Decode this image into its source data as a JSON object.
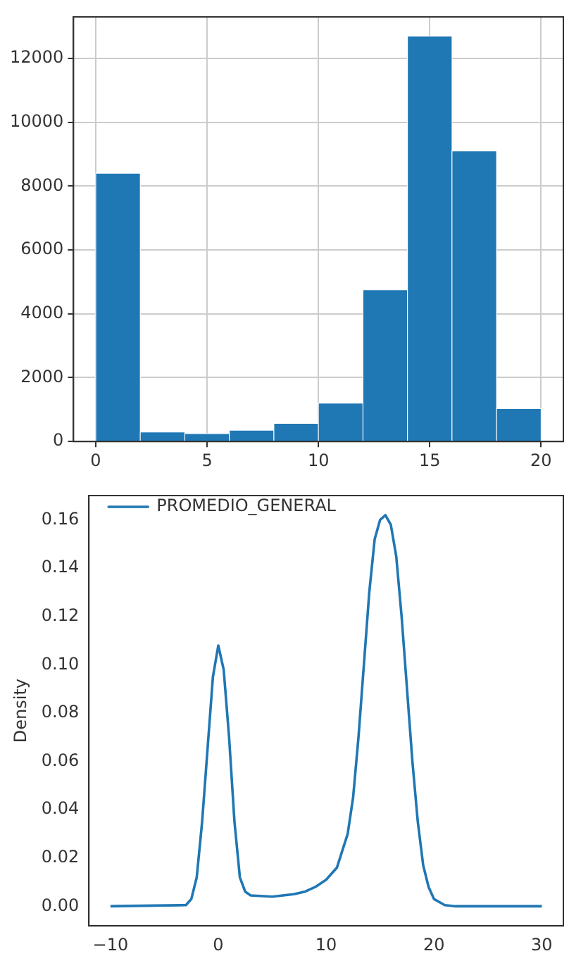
{
  "chart_data": [
    {
      "type": "histogram",
      "bins": [
        0,
        2,
        4,
        6,
        8,
        10,
        12,
        14,
        16,
        18,
        20
      ],
      "values": [
        8400,
        300,
        250,
        350,
        570,
        1200,
        4750,
        12700,
        9100,
        1030
      ],
      "color": "#1f77b4",
      "xlim": [
        -1,
        21
      ],
      "xticks": [
        0,
        5,
        10,
        15,
        20
      ],
      "ylim": [
        0,
        13300
      ],
      "yticks": [
        0,
        2000,
        4000,
        6000,
        8000,
        10000,
        12000
      ],
      "grid": true
    },
    {
      "type": "line",
      "ylabel": "Density",
      "legend": "top left",
      "grid": false,
      "xlim": [
        -12,
        32
      ],
      "xticks": [
        {
          "value": -10,
          "label": "−10"
        },
        0,
        10,
        20,
        {
          "value": 30,
          "label": "30"
        }
      ],
      "ylim": [
        -0.0081,
        0.1701
      ],
      "yticks": [
        {
          "value": 0,
          "label": "0.00"
        },
        {
          "value": 0.02,
          "label": "0.02"
        },
        {
          "value": 0.04,
          "label": "0.04"
        },
        {
          "value": 0.06,
          "label": "0.06"
        },
        {
          "value": 0.08,
          "label": "0.08"
        },
        {
          "value": 0.1,
          "label": "0.10"
        },
        {
          "value": 0.12,
          "label": "0.12"
        },
        {
          "value": 0.14,
          "label": "0.14"
        },
        {
          "value": 0.16,
          "label": "0.16"
        }
      ],
      "x": [
        -10,
        -3,
        -2.5,
        -2,
        -1.5,
        -1,
        -0.5,
        0,
        0.5,
        1,
        1.5,
        2,
        2.5,
        3,
        5,
        7,
        8,
        9,
        10,
        11,
        12,
        12.5,
        13,
        13.5,
        14,
        14.5,
        15,
        15.5,
        16,
        16.5,
        17,
        17.5,
        18,
        18.5,
        19,
        19.5,
        20,
        21,
        22,
        30
      ],
      "series": [
        {
          "name": "PROMEDIO_GENERAL",
          "color": "#1f77b4",
          "values": [
            0,
            0.0005,
            0.003,
            0.012,
            0.035,
            0.065,
            0.095,
            0.108,
            0.098,
            0.07,
            0.035,
            0.012,
            0.006,
            0.0045,
            0.004,
            0.005,
            0.006,
            0.008,
            0.011,
            0.016,
            0.03,
            0.045,
            0.07,
            0.1,
            0.13,
            0.152,
            0.16,
            0.162,
            0.158,
            0.145,
            0.12,
            0.09,
            0.06,
            0.035,
            0.017,
            0.008,
            0.003,
            0.0005,
            0,
            0
          ]
        }
      ]
    }
  ]
}
